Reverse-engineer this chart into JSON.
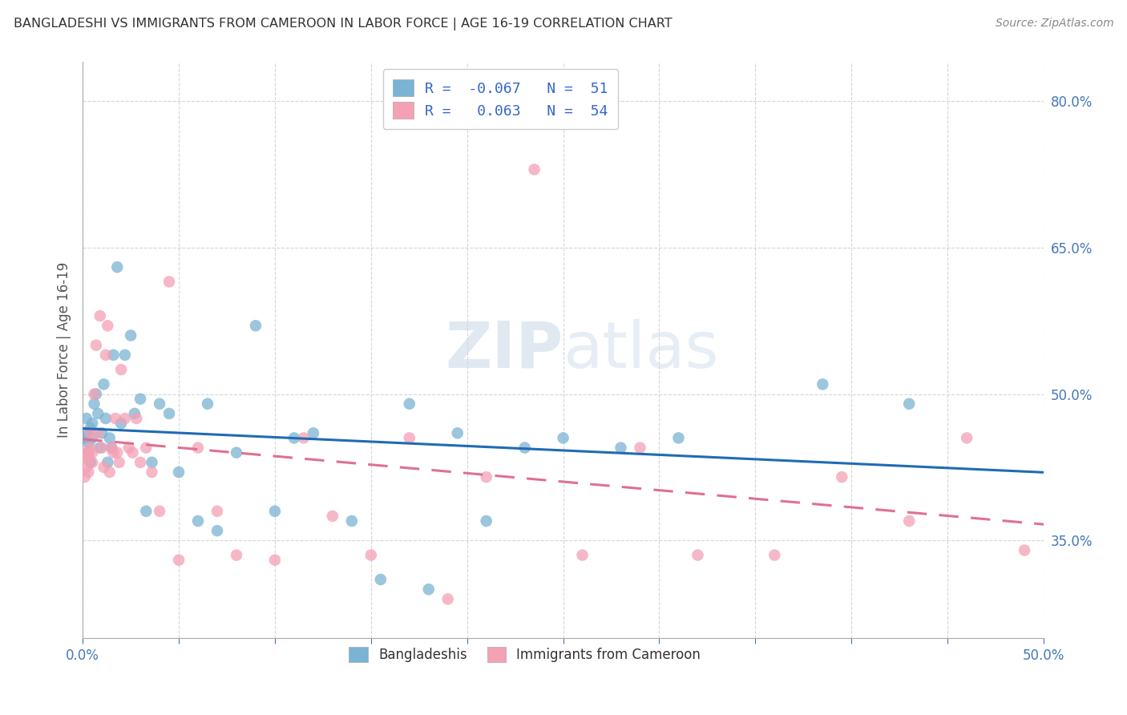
{
  "title": "BANGLADESHI VS IMMIGRANTS FROM CAMEROON IN LABOR FORCE | AGE 16-19 CORRELATION CHART",
  "source": "Source: ZipAtlas.com",
  "ylabel": "In Labor Force | Age 16-19",
  "xlim": [
    0.0,
    0.5
  ],
  "ylim": [
    0.25,
    0.84
  ],
  "xticks": [
    0.0,
    0.05,
    0.1,
    0.15,
    0.2,
    0.25,
    0.3,
    0.35,
    0.4,
    0.45,
    0.5
  ],
  "xtick_labels": [
    "0.0%",
    "",
    "",
    "",
    "",
    "",
    "",
    "",
    "",
    "",
    "50.0%"
  ],
  "yticks": [
    0.35,
    0.5,
    0.65,
    0.8
  ],
  "ytick_labels": [
    "35.0%",
    "50.0%",
    "65.0%",
    "80.0%"
  ],
  "blue_color": "#7ab3d4",
  "pink_color": "#f4a0b5",
  "blue_line_color": "#1f6bb5",
  "pink_line_color": "#e07090",
  "legend_r_blue": "-0.067",
  "legend_n_blue": "51",
  "legend_r_pink": "0.063",
  "legend_n_pink": "54",
  "watermark": "ZIPatlas",
  "blue_scatter_x": [
    0.001,
    0.002,
    0.002,
    0.003,
    0.003,
    0.004,
    0.004,
    0.005,
    0.005,
    0.006,
    0.007,
    0.008,
    0.009,
    0.01,
    0.011,
    0.012,
    0.013,
    0.014,
    0.015,
    0.016,
    0.018,
    0.02,
    0.022,
    0.025,
    0.027,
    0.03,
    0.033,
    0.036,
    0.04,
    0.045,
    0.05,
    0.06,
    0.065,
    0.07,
    0.08,
    0.09,
    0.1,
    0.11,
    0.12,
    0.14,
    0.155,
    0.17,
    0.18,
    0.195,
    0.21,
    0.23,
    0.25,
    0.28,
    0.31,
    0.385,
    0.43
  ],
  "blue_scatter_y": [
    0.455,
    0.46,
    0.475,
    0.44,
    0.45,
    0.465,
    0.43,
    0.47,
    0.455,
    0.49,
    0.5,
    0.48,
    0.445,
    0.46,
    0.51,
    0.475,
    0.43,
    0.455,
    0.445,
    0.54,
    0.63,
    0.47,
    0.54,
    0.56,
    0.48,
    0.495,
    0.38,
    0.43,
    0.49,
    0.48,
    0.42,
    0.37,
    0.49,
    0.36,
    0.44,
    0.57,
    0.38,
    0.455,
    0.46,
    0.37,
    0.31,
    0.49,
    0.3,
    0.46,
    0.37,
    0.445,
    0.455,
    0.445,
    0.455,
    0.51,
    0.49
  ],
  "pink_scatter_x": [
    0.001,
    0.001,
    0.002,
    0.002,
    0.003,
    0.003,
    0.004,
    0.004,
    0.005,
    0.005,
    0.006,
    0.007,
    0.008,
    0.009,
    0.01,
    0.011,
    0.012,
    0.013,
    0.014,
    0.015,
    0.016,
    0.017,
    0.018,
    0.019,
    0.02,
    0.022,
    0.024,
    0.026,
    0.028,
    0.03,
    0.033,
    0.036,
    0.04,
    0.045,
    0.05,
    0.06,
    0.07,
    0.08,
    0.1,
    0.115,
    0.13,
    0.15,
    0.17,
    0.19,
    0.21,
    0.235,
    0.26,
    0.29,
    0.32,
    0.36,
    0.395,
    0.43,
    0.46,
    0.49
  ],
  "pink_scatter_y": [
    0.435,
    0.415,
    0.44,
    0.425,
    0.42,
    0.435,
    0.445,
    0.46,
    0.44,
    0.43,
    0.5,
    0.55,
    0.46,
    0.58,
    0.445,
    0.425,
    0.54,
    0.57,
    0.42,
    0.445,
    0.44,
    0.475,
    0.44,
    0.43,
    0.525,
    0.475,
    0.445,
    0.44,
    0.475,
    0.43,
    0.445,
    0.42,
    0.38,
    0.615,
    0.33,
    0.445,
    0.38,
    0.335,
    0.33,
    0.455,
    0.375,
    0.335,
    0.455,
    0.29,
    0.415,
    0.73,
    0.335,
    0.445,
    0.335,
    0.335,
    0.415,
    0.37,
    0.455,
    0.34
  ]
}
